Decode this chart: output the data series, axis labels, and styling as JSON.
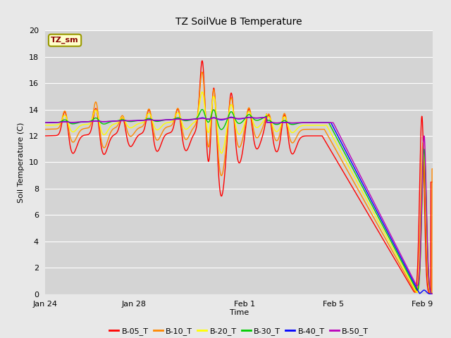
{
  "title": "TZ SoilVue B Temperature",
  "xlabel": "Time",
  "ylabel": "Soil Temperature (C)",
  "ylim": [
    0,
    20
  ],
  "yticks": [
    0,
    2,
    4,
    6,
    8,
    10,
    12,
    14,
    16,
    18,
    20
  ],
  "annotation": "TZ_sm",
  "fig_facecolor": "#e8e8e8",
  "ax_facecolor": "#d4d4d4",
  "series_colors": {
    "B-05_T": "#ff0000",
    "B-10_T": "#ff8800",
    "B-20_T": "#ffff00",
    "B-30_T": "#00cc00",
    "B-40_T": "#0000ff",
    "B-50_T": "#bb00bb"
  },
  "series_order": [
    "B-05_T",
    "B-10_T",
    "B-20_T",
    "B-30_T",
    "B-40_T",
    "B-50_T"
  ],
  "x_tick_labels": [
    "Jan 24",
    "Jan 28",
    "Feb 1",
    "Feb 5",
    "Feb 9"
  ],
  "x_tick_positions": [
    0,
    4,
    9,
    13,
    17
  ],
  "figsize": [
    6.4,
    4.8
  ],
  "dpi": 100
}
